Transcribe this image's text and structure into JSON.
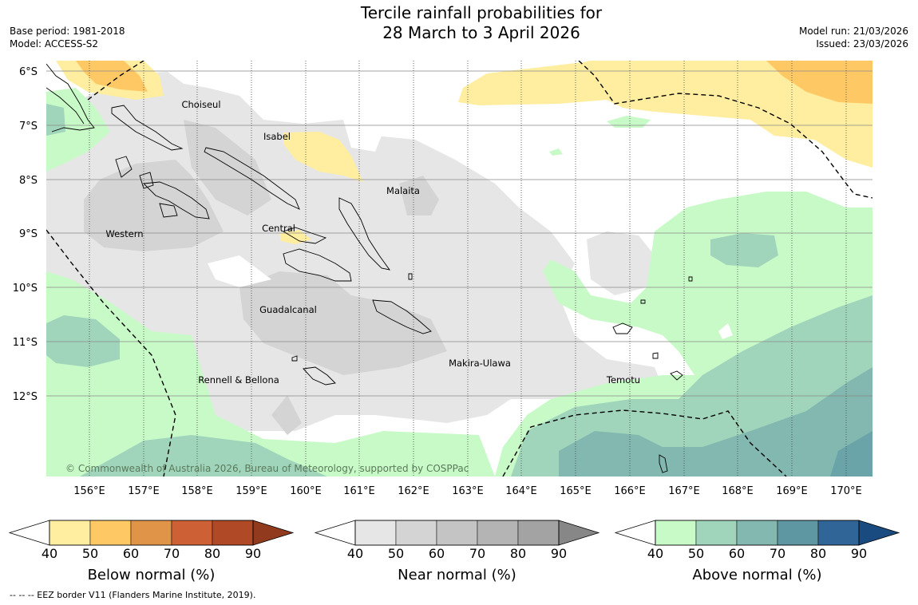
{
  "title": {
    "line1": "Tercile rainfall probabilities for",
    "line2": "28 March to 3 April 2026"
  },
  "meta_left": {
    "base_period": "Base period: 1981-2018",
    "model": "Model: ACCESS-S2"
  },
  "meta_right": {
    "model_run": "Model run: 21/03/2026",
    "issued": "Issued: 23/03/2026"
  },
  "map": {
    "lat_ticks": [
      "6°S",
      "7°S",
      "8°S",
      "9°S",
      "10°S",
      "11°S",
      "12°S"
    ],
    "lon_ticks": [
      "156°E",
      "157°E",
      "158°E",
      "159°E",
      "160°E",
      "161°E",
      "162°E",
      "163°E",
      "164°E",
      "165°E",
      "166°E",
      "167°E",
      "168°E",
      "169°E",
      "170°E"
    ],
    "regions": {
      "choiseul": "Choiseul",
      "isabel": "Isabel",
      "malaita": "Malaita",
      "western": "Western",
      "central": "Central",
      "guadalcanal": "Guadalcanal",
      "makira": "Makira-Ulawa",
      "rennell": "Rennell & Bellona",
      "temotu": "Temotu"
    },
    "copyright": "© Commonwealth of Australia 2026, Bureau of Meteorology, supported by COSPPac"
  },
  "legends": {
    "ticks": [
      "40",
      "50",
      "60",
      "70",
      "80",
      "90"
    ],
    "below": {
      "title": "Below normal (%)",
      "colors": [
        "#ffeda0",
        "#fec965",
        "#e09447",
        "#cd6135",
        "#b04926",
        "#923a1d"
      ]
    },
    "near": {
      "title": "Near normal (%)",
      "colors": [
        "#e6e6e6",
        "#d4d4d4",
        "#c4c4c4",
        "#b4b4b4",
        "#a3a3a3",
        "#878787"
      ]
    },
    "above": {
      "title": "Above normal (%)",
      "colors": [
        "#c8fac8",
        "#a1d5bb",
        "#82b8b0",
        "#5e96a2",
        "#306597",
        "#1a4b80"
      ]
    }
  },
  "footnote": "--  --  -- EEZ border V11 (Flanders Marine Institute, 2019)."
}
